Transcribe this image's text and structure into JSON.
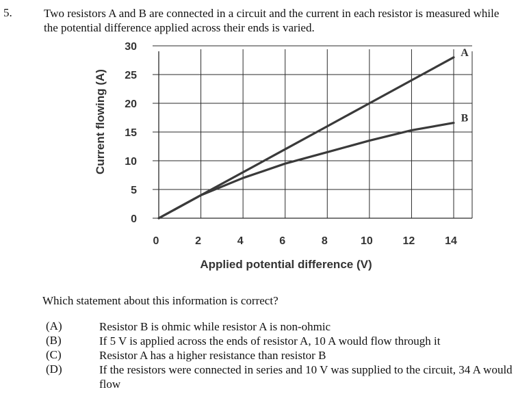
{
  "question": {
    "number": "5.",
    "stem": "Two resistors A and B are connected in a circuit and the current in each resistor is measured while the potential difference applied across their ends is varied.",
    "prompt": "Which statement about this information is correct?",
    "options": [
      {
        "letter": "(A)",
        "text": "Resistor B is ohmic while resistor A is non-ohmic"
      },
      {
        "letter": "(B)",
        "text": "If 5 V is applied across the ends of resistor A, 10 A would flow through it"
      },
      {
        "letter": "(C)",
        "text": "Resistor A has a higher resistance than resistor B"
      },
      {
        "letter": "(D)",
        "text": "If the resistors were connected in series and 10 V was supplied to the circuit, 34 A would flow"
      }
    ]
  },
  "chart_data": {
    "type": "line",
    "xlabel": "Applied potential difference (V)",
    "ylabel": "Current flowing (A)",
    "xlim": [
      0,
      14
    ],
    "ylim": [
      0,
      30
    ],
    "x_ticks": [
      0,
      2,
      4,
      6,
      8,
      10,
      12,
      14
    ],
    "y_ticks": [
      0,
      5,
      10,
      15,
      20,
      25,
      30
    ],
    "grid": true,
    "series": [
      {
        "name": "A",
        "x": [
          0,
          2,
          4,
          6,
          8,
          10,
          12,
          14
        ],
        "y": [
          0,
          4,
          8,
          12,
          16,
          20,
          24,
          28
        ]
      },
      {
        "name": "B",
        "x": [
          0,
          2,
          4,
          6,
          8,
          10,
          12,
          14
        ],
        "y": [
          0,
          4,
          7,
          9.5,
          11.5,
          13.5,
          15.3,
          16.6
        ]
      }
    ],
    "colors": {
      "line": "#3a3a3a",
      "grid": "#2a2a2a"
    }
  }
}
